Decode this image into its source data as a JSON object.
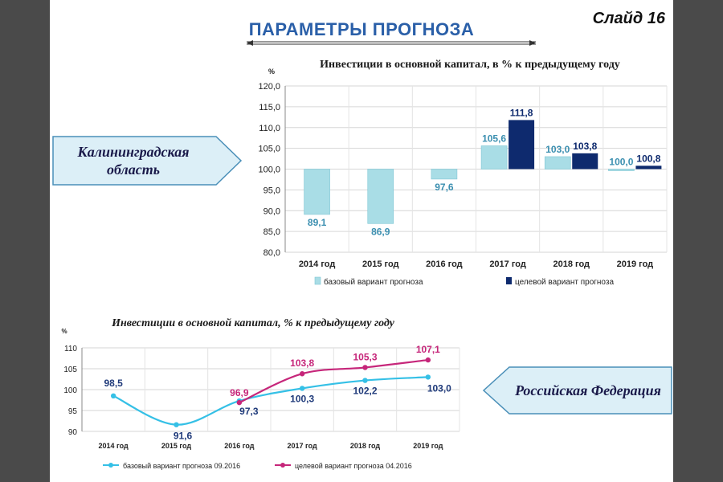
{
  "slide": {
    "number_label": "Слайд 16",
    "title": "ПАРАМЕТРЫ ПРОГНОЗА"
  },
  "regions": {
    "top": "Калининградская область",
    "bottom": "Российская Федерация"
  },
  "colors": {
    "base_bar": "#a9dde6",
    "target_bar": "#0e2a6e",
    "base_label": "#3b8fb0",
    "target_label": "#0e2a6e",
    "base_line": "#35c0e6",
    "target_line": "#c6267a",
    "title_blue": "#2a5fa8",
    "arrow_fill": "#dceff7",
    "arrow_stroke": "#4a8fb8"
  },
  "chart_data": [
    {
      "type": "bar",
      "title": "Инвестиции в основной капитал, в % к предыдущему году",
      "ylabel": "%",
      "ylim": [
        80,
        120
      ],
      "yticks": [
        "80,0",
        "85,0",
        "90,0",
        "95,0",
        "100,0",
        "105,0",
        "110,0",
        "115,0",
        "120,0"
      ],
      "baseline": 100,
      "categories": [
        "2014 год",
        "2015 год",
        "2016 год",
        "2017 год",
        "2018 год",
        "2019 год"
      ],
      "series": [
        {
          "name": "базовый вариант прогноза",
          "values": [
            89.1,
            86.9,
            97.6,
            105.6,
            103.0,
            100.0
          ],
          "labels": [
            "89,1",
            "86,9",
            "97,6",
            "105,6",
            "103,0",
            "100,0"
          ]
        },
        {
          "name": "целевой вариант прогноза",
          "values": [
            null,
            null,
            null,
            111.8,
            103.8,
            100.8
          ],
          "labels": [
            "",
            "",
            "",
            "111,8",
            "103,8",
            "100,8"
          ]
        }
      ],
      "grid": true,
      "legend": "bottom"
    },
    {
      "type": "line",
      "title": "Инвестиции в основной капитал, % к предыдущему году",
      "ylabel": "%",
      "ylim": [
        90,
        110
      ],
      "yticks": [
        "90",
        "95",
        "100",
        "105",
        "110"
      ],
      "categories": [
        "2014 год",
        "2015 год",
        "2016 год",
        "2017 год",
        "2018 год",
        "2019 год"
      ],
      "series": [
        {
          "name": "базовый вариант прогноза 09.2016",
          "values": [
            98.5,
            91.6,
            97.3,
            100.3,
            102.2,
            103.0
          ],
          "labels": [
            "98,5",
            "91,6",
            "97,3",
            "100,3",
            "102,2",
            "103,0"
          ]
        },
        {
          "name": "целевой вариант прогноза 04.2016",
          "values": [
            null,
            null,
            96.9,
            103.8,
            105.3,
            107.1
          ],
          "labels": [
            "",
            "",
            "96,9",
            "103,8",
            "105,3",
            "107,1"
          ]
        }
      ],
      "grid": true,
      "legend": "bottom"
    }
  ]
}
